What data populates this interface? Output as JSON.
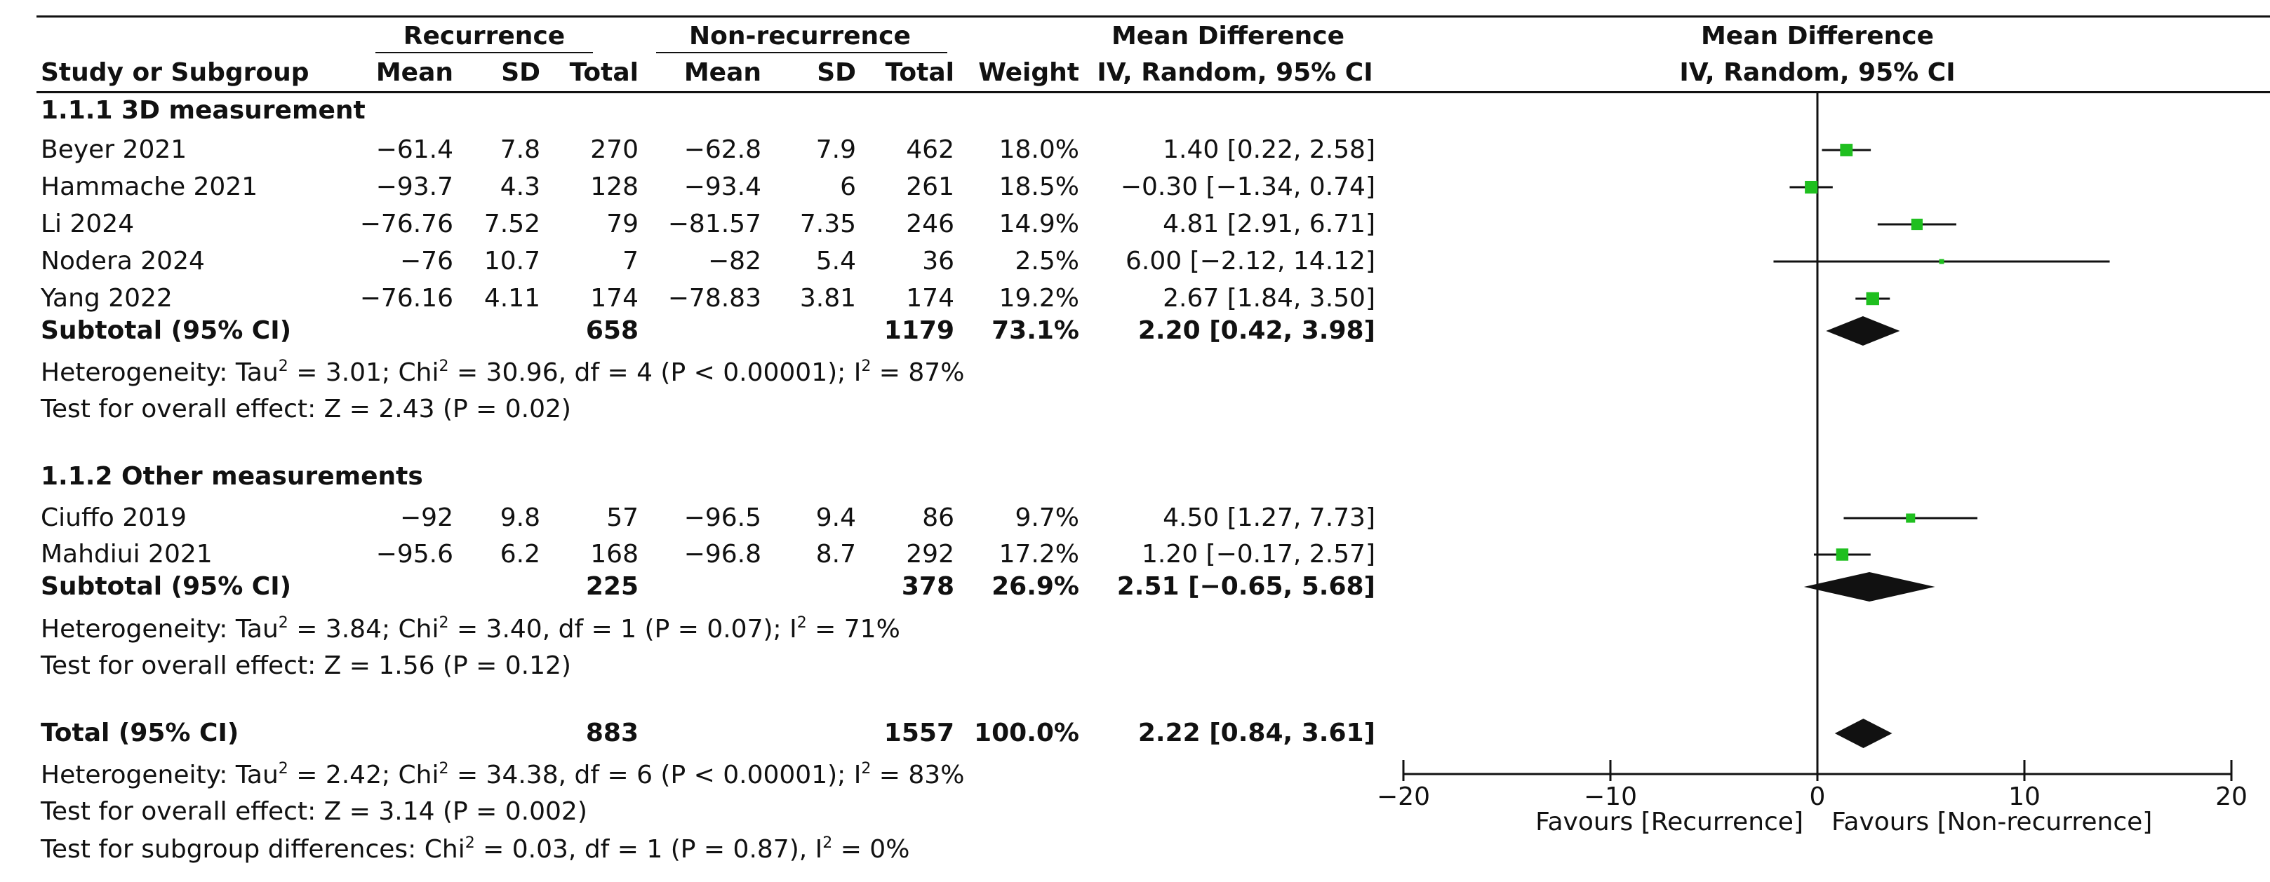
{
  "header": {
    "group1": "Recurrence",
    "group2": "Non-recurrence",
    "effect_title": "Mean Difference",
    "effect_sub": "IV, Random, 95% CI",
    "plot_title": "Mean Difference",
    "plot_sub": "IV, Random, 95% CI",
    "col_study": "Study or Subgroup",
    "col_mean": "Mean",
    "col_sd": "SD",
    "col_total": "Total",
    "col_mean2": "Mean",
    "col_sd2": "SD",
    "col_total2": "Total",
    "col_weight": "Weight",
    "col_ci": "IV, Random, 95% CI"
  },
  "subgroups": [
    {
      "title": "1.1.1 3D measurement",
      "studies": [
        {
          "name": "Beyer 2021",
          "m1": "−61.4",
          "sd1": "7.8",
          "n1": "270",
          "m2": "−62.8",
          "sd2": "7.9",
          "n2": "462",
          "weight": "18.0%",
          "ci": "1.40 [0.22, 2.58]"
        },
        {
          "name": "Hammache 2021",
          "m1": "−93.7",
          "sd1": "4.3",
          "n1": "128",
          "m2": "−93.4",
          "sd2": "6",
          "n2": "261",
          "weight": "18.5%",
          "ci": "−0.30 [−1.34, 0.74]"
        },
        {
          "name": "Li 2024",
          "m1": "−76.76",
          "sd1": "7.52",
          "n1": "79",
          "m2": "−81.57",
          "sd2": "7.35",
          "n2": "246",
          "weight": "14.9%",
          "ci": "4.81 [2.91, 6.71]"
        },
        {
          "name": "Nodera 2024",
          "m1": "−76",
          "sd1": "10.7",
          "n1": "7",
          "m2": "−82",
          "sd2": "5.4",
          "n2": "36",
          "weight": "2.5%",
          "ci": "6.00 [−2.12, 14.12]"
        },
        {
          "name": "Yang 2022",
          "m1": "−76.16",
          "sd1": "4.11",
          "n1": "174",
          "m2": "−78.83",
          "sd2": "3.81",
          "n2": "174",
          "weight": "19.2%",
          "ci": "2.67 [1.84, 3.50]"
        }
      ],
      "subtotal": {
        "label": "Subtotal (95% CI)",
        "n1": "658",
        "n2": "1179",
        "weight": "73.1%",
        "ci": "2.20 [0.42, 3.98]"
      },
      "heterogeneity": {
        "a": "Heterogeneity: Tau",
        "b": " = 3.01; Chi",
        "c": " = 30.96, df = 4 (P < 0.00001); I",
        "d": " = 87%"
      },
      "overall": "Test for overall effect: Z = 2.43 (P = 0.02)"
    },
    {
      "title": "1.1.2 Other measurements",
      "studies": [
        {
          "name": "Ciuffo 2019",
          "m1": "−92",
          "sd1": "9.8",
          "n1": "57",
          "m2": "−96.5",
          "sd2": "9.4",
          "n2": "86",
          "weight": "9.7%",
          "ci": "4.50 [1.27, 7.73]"
        },
        {
          "name": "Mahdiui 2021",
          "m1": "−95.6",
          "sd1": "6.2",
          "n1": "168",
          "m2": "−96.8",
          "sd2": "8.7",
          "n2": "292",
          "weight": "17.2%",
          "ci": "1.20 [−0.17, 2.57]"
        }
      ],
      "subtotal": {
        "label": "Subtotal (95% CI)",
        "n1": "225",
        "n2": "378",
        "weight": "26.9%",
        "ci": "2.51 [−0.65, 5.68]"
      },
      "heterogeneity": {
        "a": "Heterogeneity: Tau",
        "b": " = 3.84; Chi",
        "c": " = 3.40, df = 1 (P = 0.07); I",
        "d": " = 71%"
      },
      "overall": "Test for overall effect: Z = 1.56 (P = 0.12)"
    }
  ],
  "total": {
    "label": "Total (95% CI)",
    "n1": "883",
    "n2": "1557",
    "weight": "100.0%",
    "ci": "2.22 [0.84, 3.61]"
  },
  "total_heterogeneity": {
    "a": "Heterogeneity: Tau",
    "b": " = 2.42; Chi",
    "c": " = 34.38, df = 6 (P < 0.00001); I",
    "d": " = 83%"
  },
  "total_overall": "Test for overall effect: Z = 3.14 (P = 0.002)",
  "subgroup_diff": {
    "a": "Test for subgroup differences: Chi",
    "b": " = 0.03, df = 1 (P = 0.87), I",
    "c": " = 0%"
  },
  "sup2": "2",
  "chart_data": {
    "type": "forest",
    "title": "Mean Difference IV, Random, 95% CI",
    "xlim": [
      -20,
      20
    ],
    "ticks": [
      -20,
      -10,
      0,
      10,
      20
    ],
    "tick_labels": [
      "−20",
      "−10",
      "0",
      "10",
      "20"
    ],
    "left_label": "Favours [Recurrence]",
    "right_label": "Favours [Non-recurrence]",
    "point_color": "#1fbf1f",
    "studies": [
      {
        "name": "Beyer 2021",
        "md": 1.4,
        "lo": 0.22,
        "hi": 2.58,
        "weight": 18.0
      },
      {
        "name": "Hammache 2021",
        "md": -0.3,
        "lo": -1.34,
        "hi": 0.74,
        "weight": 18.5
      },
      {
        "name": "Li 2024",
        "md": 4.81,
        "lo": 2.91,
        "hi": 6.71,
        "weight": 14.9
      },
      {
        "name": "Nodera 2024",
        "md": 6.0,
        "lo": -2.12,
        "hi": 14.12,
        "weight": 2.5
      },
      {
        "name": "Yang 2022",
        "md": 2.67,
        "lo": 1.84,
        "hi": 3.5,
        "weight": 19.2
      },
      {
        "name": "Ciuffo 2019",
        "md": 4.5,
        "lo": 1.27,
        "hi": 7.73,
        "weight": 9.7
      },
      {
        "name": "Mahdiui 2021",
        "md": 1.2,
        "lo": -0.17,
        "hi": 2.57,
        "weight": 17.2
      }
    ],
    "diamonds": [
      {
        "name": "Subtotal 1.1.1",
        "md": 2.2,
        "lo": 0.42,
        "hi": 3.98
      },
      {
        "name": "Subtotal 1.1.2",
        "md": 2.51,
        "lo": -0.65,
        "hi": 5.68
      },
      {
        "name": "Total",
        "md": 2.22,
        "lo": 0.84,
        "hi": 3.61
      }
    ]
  }
}
